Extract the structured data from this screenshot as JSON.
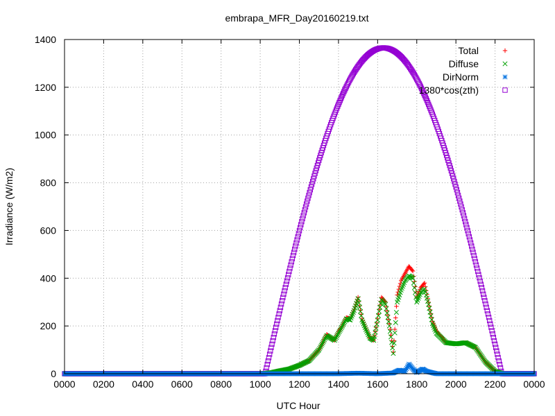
{
  "chart_data": {
    "type": "scatter",
    "title": "embrapa_MFR_Day20160219.txt",
    "xlabel": "UTC Hour",
    "ylabel": "Irradiance (W/m2)",
    "xlim": [
      0,
      2400
    ],
    "ylim": [
      0,
      1400
    ],
    "x_ticks": [
      "0000",
      "0200",
      "0400",
      "0600",
      "0800",
      "1000",
      "1200",
      "1400",
      "1600",
      "1800",
      "2000",
      "2200",
      "0000"
    ],
    "y_ticks": [
      "0",
      "200",
      "400",
      "600",
      "800",
      "1000",
      "1200",
      "1400"
    ],
    "grid": true,
    "legend_position": "top-right",
    "series": [
      {
        "name": "Total",
        "color": "#ff0000",
        "marker": "plus",
        "points": [
          [
            0,
            0
          ],
          [
            1000,
            0
          ],
          [
            1030,
            2
          ],
          [
            1060,
            5
          ],
          [
            1100,
            12
          ],
          [
            1150,
            20
          ],
          [
            1200,
            35
          ],
          [
            1250,
            55
          ],
          [
            1300,
            100
          ],
          [
            1320,
            130
          ],
          [
            1340,
            165
          ],
          [
            1360,
            150
          ],
          [
            1380,
            140
          ],
          [
            1400,
            175
          ],
          [
            1420,
            200
          ],
          [
            1440,
            235
          ],
          [
            1460,
            230
          ],
          [
            1480,
            270
          ],
          [
            1500,
            320
          ],
          [
            1520,
            230
          ],
          [
            1540,
            190
          ],
          [
            1560,
            150
          ],
          [
            1580,
            140
          ],
          [
            1600,
            230
          ],
          [
            1610,
            280
          ],
          [
            1620,
            320
          ],
          [
            1640,
            300
          ],
          [
            1660,
            210
          ],
          [
            1680,
            90
          ],
          [
            1700,
            330
          ],
          [
            1720,
            390
          ],
          [
            1740,
            420
          ],
          [
            1760,
            450
          ],
          [
            1780,
            430
          ],
          [
            1800,
            320
          ],
          [
            1820,
            360
          ],
          [
            1840,
            380
          ],
          [
            1860,
            300
          ],
          [
            1880,
            220
          ],
          [
            1900,
            180
          ],
          [
            1950,
            130
          ],
          [
            2000,
            125
          ],
          [
            2050,
            130
          ],
          [
            2100,
            110
          ],
          [
            2150,
            50
          ],
          [
            2200,
            10
          ],
          [
            2240,
            0
          ],
          [
            2400,
            0
          ]
        ]
      },
      {
        "name": "Diffuse",
        "color": "#00a000",
        "marker": "x",
        "points": [
          [
            0,
            0
          ],
          [
            1000,
            0
          ],
          [
            1030,
            2
          ],
          [
            1060,
            5
          ],
          [
            1100,
            12
          ],
          [
            1150,
            20
          ],
          [
            1200,
            35
          ],
          [
            1250,
            55
          ],
          [
            1300,
            100
          ],
          [
            1320,
            130
          ],
          [
            1340,
            160
          ],
          [
            1360,
            150
          ],
          [
            1380,
            140
          ],
          [
            1400,
            170
          ],
          [
            1420,
            200
          ],
          [
            1440,
            230
          ],
          [
            1460,
            225
          ],
          [
            1480,
            265
          ],
          [
            1500,
            315
          ],
          [
            1520,
            225
          ],
          [
            1540,
            185
          ],
          [
            1560,
            150
          ],
          [
            1580,
            140
          ],
          [
            1600,
            225
          ],
          [
            1610,
            270
          ],
          [
            1620,
            310
          ],
          [
            1640,
            290
          ],
          [
            1660,
            200
          ],
          [
            1680,
            85
          ],
          [
            1700,
            300
          ],
          [
            1720,
            350
          ],
          [
            1740,
            390
          ],
          [
            1760,
            410
          ],
          [
            1780,
            400
          ],
          [
            1800,
            300
          ],
          [
            1820,
            340
          ],
          [
            1840,
            355
          ],
          [
            1860,
            290
          ],
          [
            1880,
            210
          ],
          [
            1900,
            170
          ],
          [
            1950,
            130
          ],
          [
            2000,
            125
          ],
          [
            2050,
            130
          ],
          [
            2100,
            110
          ],
          [
            2150,
            50
          ],
          [
            2200,
            10
          ],
          [
            2240,
            0
          ],
          [
            2400,
            0
          ]
        ]
      },
      {
        "name": "DirNorm",
        "color": "#0070e0",
        "marker": "star",
        "points": [
          [
            0,
            0
          ],
          [
            1000,
            0
          ],
          [
            1200,
            0
          ],
          [
            1400,
            0
          ],
          [
            1500,
            2
          ],
          [
            1600,
            0
          ],
          [
            1680,
            3
          ],
          [
            1710,
            15
          ],
          [
            1740,
            10
          ],
          [
            1760,
            40
          ],
          [
            1780,
            20
          ],
          [
            1800,
            5
          ],
          [
            1830,
            20
          ],
          [
            1850,
            10
          ],
          [
            1900,
            0
          ],
          [
            2100,
            0
          ],
          [
            2400,
            0
          ]
        ]
      },
      {
        "name": "1380*cos(zth)",
        "color": "#9400d3",
        "marker": "square",
        "function": {
          "amplitude": 1365,
          "center": 1630,
          "half_width": 605
        }
      }
    ]
  }
}
